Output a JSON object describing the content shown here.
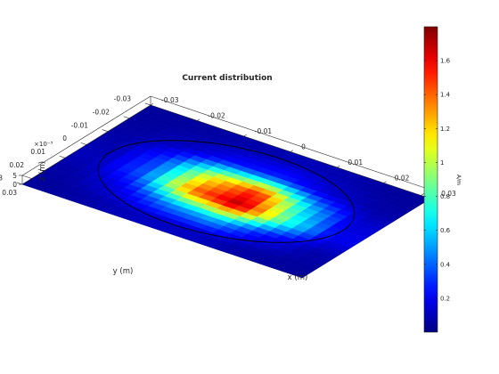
{
  "chart_data": {
    "type": "heatmap",
    "title": "Current distribution",
    "xlabel": "x (m)",
    "ylabel": "y (m)",
    "zlabel": "z (m)",
    "z_exponent_label": "×10⁻³",
    "colorbar_label": "A/m",
    "colormap": "jet",
    "color_range": [
      0,
      1.8
    ],
    "xlim": [
      -0.03,
      0.03
    ],
    "ylim": [
      -0.03,
      0.03
    ],
    "zlim": [
      0,
      0.005
    ],
    "x_ticks": [
      "-0.03",
      "-0.02",
      "-0.01",
      "0",
      "0.01",
      "0.02",
      "0.03"
    ],
    "y_ticks": [
      "-0.03",
      "-0.02",
      "-0.01",
      "0",
      "0.01",
      "0.02",
      "0.03"
    ],
    "z_ticks": [
      "0",
      "5"
    ],
    "colorbar_ticks": [
      "0.2",
      "0.4",
      "0.6",
      "0.8",
      "1",
      "1.2",
      "1.4",
      "1.6"
    ],
    "grid_x_centers": [
      -0.025,
      -0.015,
      -0.005,
      0.005,
      0.015,
      0.025
    ],
    "grid_y_centers": [
      -0.025,
      -0.015,
      -0.005,
      0.005,
      0.015,
      0.025
    ],
    "values": [
      [
        0.05,
        0.06,
        0.08,
        0.1,
        0.08,
        0.05
      ],
      [
        0.06,
        0.12,
        0.25,
        0.3,
        0.15,
        0.07
      ],
      [
        0.08,
        0.35,
        1.1,
        1.5,
        0.6,
        0.15
      ],
      [
        0.1,
        0.4,
        1.4,
        1.75,
        0.8,
        0.2
      ],
      [
        0.07,
        0.2,
        0.5,
        0.6,
        0.25,
        0.08
      ],
      [
        0.05,
        0.08,
        0.12,
        0.12,
        0.07,
        0.05
      ]
    ],
    "circle_radius": 0.025,
    "grid": false
  }
}
